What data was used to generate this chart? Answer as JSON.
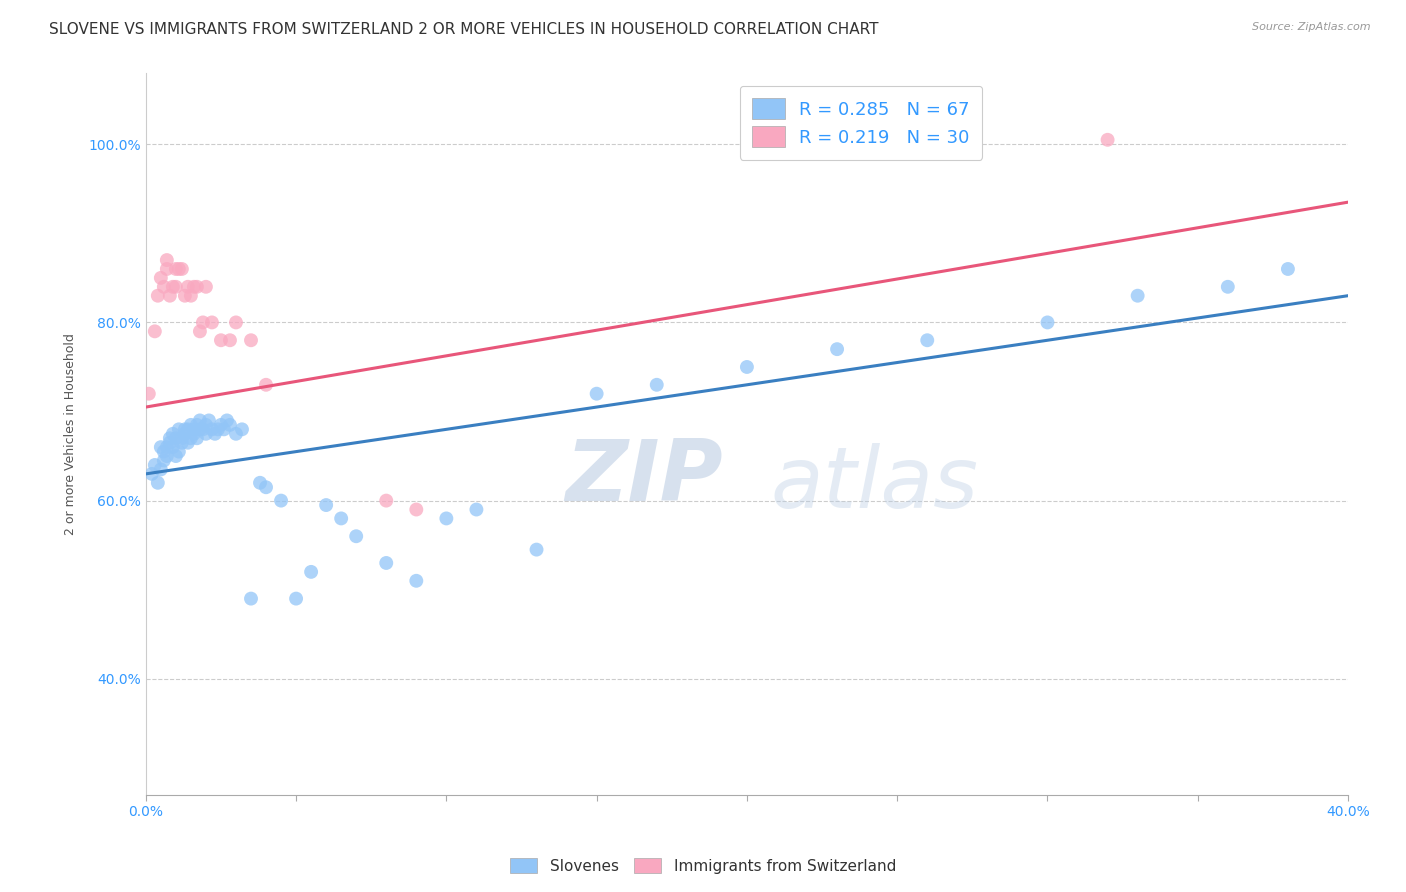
{
  "title": "SLOVENE VS IMMIGRANTS FROM SWITZERLAND 2 OR MORE VEHICLES IN HOUSEHOLD CORRELATION CHART",
  "source": "Source: ZipAtlas.com",
  "xlabel": "",
  "ylabel": "2 or more Vehicles in Household",
  "xlim": [
    0.0,
    0.4
  ],
  "ylim": [
    0.27,
    1.08
  ],
  "xtick_labels": [
    "0.0%",
    "",
    "",
    "",
    "",
    "",
    "",
    "",
    "40.0%"
  ],
  "xtick_vals": [
    0.0,
    0.05,
    0.1,
    0.15,
    0.2,
    0.25,
    0.3,
    0.35,
    0.4
  ],
  "ytick_labels": [
    "40.0%",
    "60.0%",
    "80.0%",
    "100.0%"
  ],
  "ytick_vals": [
    0.4,
    0.6,
    0.8,
    1.0
  ],
  "legend_label1": "Slovenes",
  "legend_label2": "Immigrants from Switzerland",
  "r1": 0.285,
  "n1": 67,
  "r2": 0.219,
  "n2": 30,
  "color1": "#92C5F7",
  "color2": "#F9A8C0",
  "line_color1": "#3A7FC1",
  "line_color2": "#E8567A",
  "background_color": "#ffffff",
  "title_fontsize": 11,
  "axis_label_fontsize": 9,
  "tick_fontsize": 10,
  "watermark_zip": "ZIP",
  "watermark_atlas": "atlas",
  "slovenes_x": [
    0.002,
    0.003,
    0.004,
    0.005,
    0.005,
    0.006,
    0.006,
    0.007,
    0.007,
    0.008,
    0.008,
    0.009,
    0.009,
    0.01,
    0.01,
    0.011,
    0.011,
    0.012,
    0.012,
    0.013,
    0.013,
    0.014,
    0.014,
    0.015,
    0.015,
    0.016,
    0.016,
    0.017,
    0.017,
    0.018,
    0.018,
    0.019,
    0.02,
    0.02,
    0.021,
    0.022,
    0.023,
    0.024,
    0.025,
    0.026,
    0.027,
    0.028,
    0.03,
    0.032,
    0.035,
    0.038,
    0.04,
    0.045,
    0.05,
    0.055,
    0.06,
    0.065,
    0.07,
    0.08,
    0.09,
    0.1,
    0.11,
    0.13,
    0.15,
    0.17,
    0.2,
    0.23,
    0.26,
    0.3,
    0.33,
    0.36,
    0.38
  ],
  "slovenes_y": [
    0.63,
    0.64,
    0.62,
    0.635,
    0.66,
    0.645,
    0.655,
    0.65,
    0.66,
    0.665,
    0.67,
    0.66,
    0.675,
    0.65,
    0.67,
    0.655,
    0.68,
    0.665,
    0.67,
    0.675,
    0.68,
    0.665,
    0.68,
    0.67,
    0.685,
    0.675,
    0.68,
    0.685,
    0.67,
    0.68,
    0.69,
    0.68,
    0.675,
    0.685,
    0.69,
    0.68,
    0.675,
    0.68,
    0.685,
    0.68,
    0.69,
    0.685,
    0.675,
    0.68,
    0.49,
    0.62,
    0.615,
    0.6,
    0.49,
    0.52,
    0.595,
    0.58,
    0.56,
    0.53,
    0.51,
    0.58,
    0.59,
    0.545,
    0.72,
    0.73,
    0.75,
    0.77,
    0.78,
    0.8,
    0.83,
    0.84,
    0.86
  ],
  "immigrants_x": [
    0.001,
    0.003,
    0.004,
    0.005,
    0.006,
    0.007,
    0.007,
    0.008,
    0.009,
    0.01,
    0.01,
    0.011,
    0.012,
    0.013,
    0.014,
    0.015,
    0.016,
    0.017,
    0.018,
    0.019,
    0.02,
    0.022,
    0.025,
    0.028,
    0.03,
    0.035,
    0.04,
    0.08,
    0.09,
    0.32
  ],
  "immigrants_y": [
    0.72,
    0.79,
    0.83,
    0.85,
    0.84,
    0.86,
    0.87,
    0.83,
    0.84,
    0.84,
    0.86,
    0.86,
    0.86,
    0.83,
    0.84,
    0.83,
    0.84,
    0.84,
    0.79,
    0.8,
    0.84,
    0.8,
    0.78,
    0.78,
    0.8,
    0.78,
    0.73,
    0.6,
    0.59,
    1.005
  ]
}
